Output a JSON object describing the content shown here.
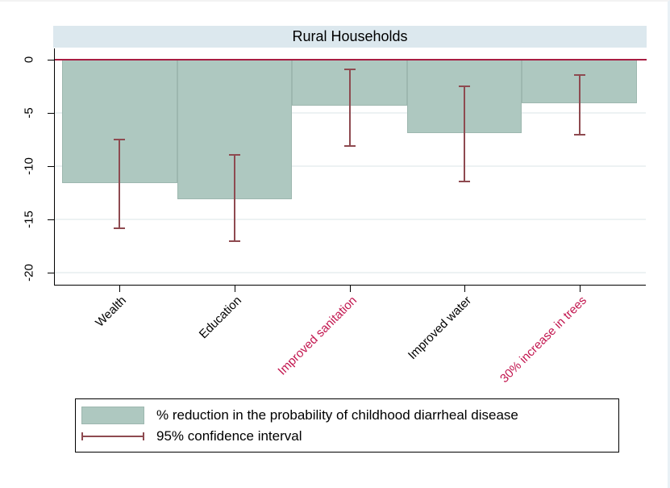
{
  "figure": {
    "title": "Rural Households"
  },
  "legend": {
    "bar_label": "% reduction in the probability of childhood diarrheal disease",
    "ci_label": "95% confidence interval"
  },
  "colors": {
    "banner_bg": "#dce8ee",
    "bar_fill": "#aec8c0",
    "bar_border": "#9db7af",
    "zero_line": "#a81d42",
    "ci": "#8e4a50",
    "highlight_label": "#c2154e",
    "grid": "#edf2f3",
    "axis": "#000000"
  },
  "chart_data": {
    "type": "bar",
    "title": "Rural Households",
    "categories": [
      "Wealth",
      "Education",
      "Improved sanitation",
      "Improved water",
      "30% increase in trees"
    ],
    "series": [
      {
        "name": "% reduction in the probability of childhood diarrheal disease",
        "values": [
          -11.6,
          -13.1,
          -4.3,
          -6.9,
          -4.1
        ]
      },
      {
        "name": "95% confidence interval",
        "type": "errorbar",
        "high": [
          -7.4,
          -8.9,
          -0.8,
          -2.4,
          -1.4
        ],
        "low": [
          -15.9,
          -17.1,
          -8.2,
          -11.5,
          -7.1
        ]
      }
    ],
    "highlighted_categories": [
      "Improved sanitation",
      "30% increase in trees"
    ],
    "xlabel": "",
    "ylabel": "",
    "ylim": [
      -21,
      0.5
    ],
    "yticks": [
      0,
      -5,
      -10,
      -15,
      -20
    ],
    "ytick_labels": [
      "0",
      "-5",
      "-10",
      "-15",
      "-20"
    ],
    "grid": true,
    "legend_position": "bottom",
    "baseline": 0
  }
}
